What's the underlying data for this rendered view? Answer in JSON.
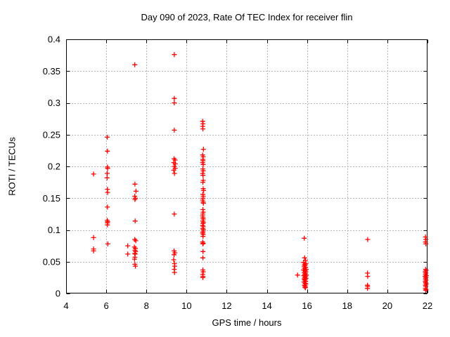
{
  "figure": {
    "background": "#ffffff"
  },
  "chart_data": {
    "type": "scatter",
    "title": "Day 090 of 2023, Rate Of TEC Index for receiver flin",
    "xlabel": "GPS time / hours",
    "ylabel": "ROTI / TECUs",
    "xlim": [
      4,
      22
    ],
    "ylim": [
      0,
      0.4
    ],
    "xticks": [
      4,
      6,
      8,
      10,
      12,
      14,
      16,
      18,
      20,
      22
    ],
    "yticks": [
      0,
      0.05,
      0.1,
      0.15,
      0.2,
      0.25,
      0.3,
      0.35,
      0.4
    ],
    "xtick_labels": [
      "4",
      "6",
      "8",
      "10",
      "12",
      "14",
      "16",
      "18",
      "20",
      "22"
    ],
    "ytick_labels": [
      "0",
      "0.05",
      "0.1",
      "0.15",
      "0.2",
      "0.25",
      "0.3",
      "0.35",
      "0.4"
    ],
    "grid": true,
    "legend": false,
    "marker": "plus",
    "marker_color": "#ff0000",
    "grid_color": "#b5b5b5",
    "axis_color": "#000000",
    "points": [
      [
        5.37,
        0.188
      ],
      [
        5.37,
        0.088
      ],
      [
        5.37,
        0.07
      ],
      [
        5.37,
        0.067
      ],
      [
        6.05,
        0.246
      ],
      [
        6.06,
        0.224
      ],
      [
        6.06,
        0.199
      ],
      [
        6.07,
        0.197
      ],
      [
        6.05,
        0.189
      ],
      [
        6.04,
        0.182
      ],
      [
        6.06,
        0.164
      ],
      [
        6.07,
        0.159
      ],
      [
        6.06,
        0.136
      ],
      [
        6.05,
        0.115
      ],
      [
        6.07,
        0.113
      ],
      [
        6.06,
        0.111
      ],
      [
        6.06,
        0.108
      ],
      [
        6.08,
        0.078
      ],
      [
        7.07,
        0.075
      ],
      [
        7.07,
        0.062
      ],
      [
        7.42,
        0.36
      ],
      [
        7.43,
        0.172
      ],
      [
        7.48,
        0.161
      ],
      [
        7.42,
        0.153
      ],
      [
        7.45,
        0.15
      ],
      [
        7.43,
        0.148
      ],
      [
        7.44,
        0.114
      ],
      [
        7.42,
        0.085
      ],
      [
        7.47,
        0.083
      ],
      [
        7.4,
        0.073
      ],
      [
        7.45,
        0.071
      ],
      [
        7.43,
        0.068
      ],
      [
        7.46,
        0.066
      ],
      [
        7.42,
        0.063
      ],
      [
        7.44,
        0.062
      ],
      [
        7.43,
        0.057
      ],
      [
        7.41,
        0.054
      ],
      [
        7.43,
        0.046
      ],
      [
        7.45,
        0.043
      ],
      [
        9.39,
        0.376
      ],
      [
        9.39,
        0.307
      ],
      [
        9.39,
        0.3
      ],
      [
        9.39,
        0.257
      ],
      [
        9.38,
        0.212
      ],
      [
        9.43,
        0.21
      ],
      [
        9.36,
        0.206
      ],
      [
        9.44,
        0.204
      ],
      [
        9.39,
        0.2
      ],
      [
        9.43,
        0.197
      ],
      [
        9.36,
        0.194
      ],
      [
        9.4,
        0.189
      ],
      [
        9.39,
        0.125
      ],
      [
        9.38,
        0.067
      ],
      [
        9.42,
        0.064
      ],
      [
        9.38,
        0.061
      ],
      [
        9.36,
        0.053
      ],
      [
        9.4,
        0.047
      ],
      [
        9.41,
        0.043
      ],
      [
        9.39,
        0.038
      ],
      [
        9.4,
        0.033
      ],
      [
        10.8,
        0.271
      ],
      [
        10.82,
        0.267
      ],
      [
        10.8,
        0.263
      ],
      [
        10.81,
        0.259
      ],
      [
        10.84,
        0.227
      ],
      [
        10.8,
        0.218
      ],
      [
        10.83,
        0.215
      ],
      [
        10.81,
        0.211
      ],
      [
        10.82,
        0.209
      ],
      [
        10.8,
        0.206
      ],
      [
        10.83,
        0.203
      ],
      [
        10.81,
        0.196
      ],
      [
        10.83,
        0.193
      ],
      [
        10.8,
        0.189
      ],
      [
        10.82,
        0.186
      ],
      [
        10.83,
        0.178
      ],
      [
        10.81,
        0.175
      ],
      [
        10.83,
        0.165
      ],
      [
        10.85,
        0.162
      ],
      [
        10.81,
        0.156
      ],
      [
        10.83,
        0.153
      ],
      [
        10.82,
        0.15
      ],
      [
        10.8,
        0.147
      ],
      [
        10.83,
        0.144
      ],
      [
        10.84,
        0.142
      ],
      [
        10.81,
        0.132
      ],
      [
        10.83,
        0.128
      ],
      [
        10.81,
        0.125
      ],
      [
        10.8,
        0.122
      ],
      [
        10.82,
        0.119
      ],
      [
        10.83,
        0.117
      ],
      [
        10.81,
        0.114
      ],
      [
        10.84,
        0.112
      ],
      [
        10.82,
        0.11
      ],
      [
        10.8,
        0.107
      ],
      [
        10.83,
        0.105
      ],
      [
        10.81,
        0.102
      ],
      [
        10.84,
        0.1
      ],
      [
        10.82,
        0.097
      ],
      [
        10.8,
        0.095
      ],
      [
        10.83,
        0.093
      ],
      [
        10.82,
        0.09
      ],
      [
        10.8,
        0.081
      ],
      [
        10.83,
        0.079
      ],
      [
        10.81,
        0.078
      ],
      [
        10.82,
        0.066
      ],
      [
        10.81,
        0.056
      ],
      [
        10.81,
        0.037
      ],
      [
        10.83,
        0.034
      ],
      [
        10.8,
        0.03
      ],
      [
        10.82,
        0.027
      ],
      [
        10.81,
        0.025
      ],
      [
        15.53,
        0.029
      ],
      [
        15.86,
        0.087
      ],
      [
        15.88,
        0.056
      ],
      [
        15.92,
        0.052
      ],
      [
        15.83,
        0.049
      ],
      [
        15.95,
        0.047
      ],
      [
        15.88,
        0.046
      ],
      [
        15.9,
        0.044
      ],
      [
        15.85,
        0.043
      ],
      [
        15.93,
        0.041
      ],
      [
        15.87,
        0.04
      ],
      [
        15.96,
        0.038
      ],
      [
        15.82,
        0.037
      ],
      [
        15.9,
        0.036
      ],
      [
        15.94,
        0.034
      ],
      [
        15.86,
        0.033
      ],
      [
        15.91,
        0.031
      ],
      [
        15.88,
        0.03
      ],
      [
        15.97,
        0.029
      ],
      [
        15.84,
        0.028
      ],
      [
        15.92,
        0.027
      ],
      [
        15.89,
        0.025
      ],
      [
        15.95,
        0.024
      ],
      [
        15.86,
        0.023
      ],
      [
        15.91,
        0.022
      ],
      [
        15.88,
        0.021
      ],
      [
        15.93,
        0.019
      ],
      [
        15.85,
        0.018
      ],
      [
        15.9,
        0.016
      ],
      [
        15.94,
        0.015
      ],
      [
        15.87,
        0.013
      ],
      [
        15.91,
        0.012
      ],
      [
        15.89,
        0.01
      ],
      [
        15.92,
        0.009
      ],
      [
        19.02,
        0.085
      ],
      [
        19.01,
        0.032
      ],
      [
        19.02,
        0.027
      ],
      [
        19.01,
        0.013
      ],
      [
        19.02,
        0.011
      ],
      [
        19.01,
        0.008
      ],
      [
        21.9,
        0.089
      ],
      [
        21.92,
        0.085
      ],
      [
        21.9,
        0.081
      ],
      [
        21.92,
        0.078
      ],
      [
        21.91,
        0.038
      ],
      [
        21.93,
        0.036
      ],
      [
        21.89,
        0.034
      ],
      [
        21.92,
        0.032
      ],
      [
        21.9,
        0.03
      ],
      [
        21.94,
        0.028
      ],
      [
        21.88,
        0.027
      ],
      [
        21.92,
        0.025
      ],
      [
        21.9,
        0.023
      ],
      [
        21.93,
        0.021
      ],
      [
        21.89,
        0.019
      ],
      [
        21.91,
        0.017
      ],
      [
        21.94,
        0.015
      ],
      [
        21.9,
        0.013
      ],
      [
        21.92,
        0.011
      ],
      [
        21.9,
        0.008
      ],
      [
        21.93,
        0.006
      ],
      [
        21.91,
        0.005
      ]
    ]
  }
}
